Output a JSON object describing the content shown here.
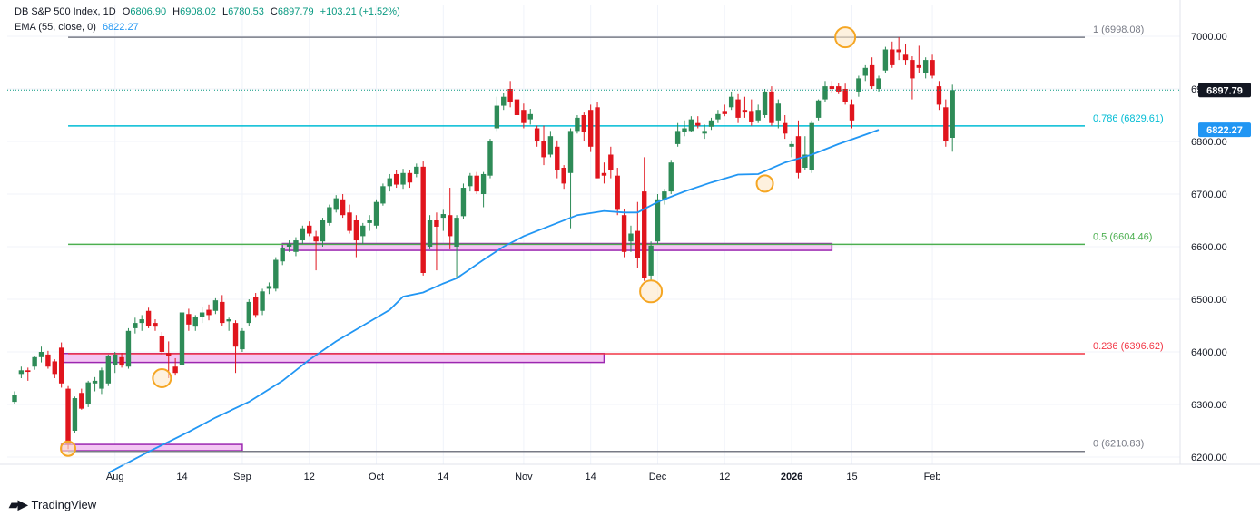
{
  "legend": {
    "symbol": "DB S&P 500 Index, 1D",
    "open_label": "O",
    "open": "6806.90",
    "high_label": "H",
    "high": "6908.02",
    "low_label": "L",
    "low": "6780.53",
    "close_label": "C",
    "close": "6897.79",
    "change": "+103.21 (+1.52%)",
    "ema_label": "EMA (55, close, 0)",
    "ema_value": "6822.27"
  },
  "branding": {
    "name": "TradingView"
  },
  "colors": {
    "up": "#26a69a",
    "up_body": "#2e8b57",
    "down": "#e0151d",
    "ema": "#2196f3",
    "fib0": "#787b86",
    "fib236": "#f23645",
    "fib5": "#4caf50",
    "fib786": "#00bcd4",
    "fib1": "#787b86",
    "zone_fill": "#f3c6f3",
    "zone_stroke": "#9c27b0",
    "circle_fill": "#fde7c8",
    "circle_stroke": "#f5a623",
    "price_badge": "#131722",
    "ema_badge": "#2196f3"
  },
  "chart_data": {
    "type": "candlestick",
    "title": "DB S&P 500 Index, 1D",
    "ylim": [
      6180,
      7050
    ],
    "y_ticks": [
      6200,
      6300,
      6400,
      6500,
      6600,
      6700,
      6800,
      6900,
      7000
    ],
    "y_tick_labels": [
      "6200.00",
      "6300.00",
      "6400.00",
      "6500.00",
      "6600.00",
      "6700.00",
      "6800.00",
      "6900.00",
      "7000.00"
    ],
    "x_ticks": [
      {
        "index": 15,
        "label": "Aug"
      },
      {
        "index": 25,
        "label": "14"
      },
      {
        "index": 34,
        "label": "Sep"
      },
      {
        "index": 44,
        "label": "12"
      },
      {
        "index": 54,
        "label": "Oct"
      },
      {
        "index": 64,
        "label": "14"
      },
      {
        "index": 76,
        "label": "Nov"
      },
      {
        "index": 86,
        "label": "14"
      },
      {
        "index": 96,
        "label": "Dec"
      },
      {
        "index": 106,
        "label": "12"
      },
      {
        "index": 116,
        "label": "2026"
      },
      {
        "index": 125,
        "label": "15"
      },
      {
        "index": 137,
        "label": "Feb"
      }
    ],
    "candles": [
      {
        "o": 6305,
        "h": 6325,
        "l": 6300,
        "c": 6318
      },
      {
        "o": 6358,
        "h": 6372,
        "l": 6350,
        "c": 6365
      },
      {
        "o": 6365,
        "h": 6370,
        "l": 6345,
        "c": 6362
      },
      {
        "o": 6372,
        "h": 6392,
        "l": 6366,
        "c": 6390
      },
      {
        "o": 6390,
        "h": 6410,
        "l": 6380,
        "c": 6400
      },
      {
        "o": 6395,
        "h": 6402,
        "l": 6368,
        "c": 6372
      },
      {
        "o": 6382,
        "h": 6386,
        "l": 6350,
        "c": 6358
      },
      {
        "o": 6408,
        "h": 6418,
        "l": 6332,
        "c": 6340
      },
      {
        "o": 6330,
        "h": 6335,
        "l": 6215,
        "c": 6225
      },
      {
        "o": 6250,
        "h": 6315,
        "l": 6245,
        "c": 6312
      },
      {
        "o": 6322,
        "h": 6330,
        "l": 6290,
        "c": 6292
      },
      {
        "o": 6300,
        "h": 6345,
        "l": 6295,
        "c": 6342
      },
      {
        "o": 6340,
        "h": 6352,
        "l": 6325,
        "c": 6345
      },
      {
        "o": 6330,
        "h": 6370,
        "l": 6320,
        "c": 6365
      },
      {
        "o": 6340,
        "h": 6395,
        "l": 6335,
        "c": 6392
      },
      {
        "o": 6375,
        "h": 6400,
        "l": 6360,
        "c": 6395
      },
      {
        "o": 6390,
        "h": 6398,
        "l": 6370,
        "c": 6374
      },
      {
        "o": 6372,
        "h": 6445,
        "l": 6368,
        "c": 6440
      },
      {
        "o": 6445,
        "h": 6465,
        "l": 6435,
        "c": 6455
      },
      {
        "o": 6455,
        "h": 6470,
        "l": 6440,
        "c": 6462
      },
      {
        "o": 6478,
        "h": 6484,
        "l": 6445,
        "c": 6450
      },
      {
        "o": 6455,
        "h": 6462,
        "l": 6440,
        "c": 6448
      },
      {
        "o": 6430,
        "h": 6438,
        "l": 6395,
        "c": 6400
      },
      {
        "o": 6398,
        "h": 6420,
        "l": 6350,
        "c": 6392
      },
      {
        "o": 6372,
        "h": 6388,
        "l": 6355,
        "c": 6360
      },
      {
        "o": 6375,
        "h": 6480,
        "l": 6370,
        "c": 6475
      },
      {
        "o": 6472,
        "h": 6482,
        "l": 6440,
        "c": 6452
      },
      {
        "o": 6448,
        "h": 6470,
        "l": 6440,
        "c": 6466
      },
      {
        "o": 6466,
        "h": 6485,
        "l": 6455,
        "c": 6475
      },
      {
        "o": 6480,
        "h": 6490,
        "l": 6460,
        "c": 6470
      },
      {
        "o": 6478,
        "h": 6502,
        "l": 6472,
        "c": 6498
      },
      {
        "o": 6495,
        "h": 6508,
        "l": 6450,
        "c": 6455
      },
      {
        "o": 6458,
        "h": 6465,
        "l": 6440,
        "c": 6462
      },
      {
        "o": 6455,
        "h": 6460,
        "l": 6360,
        "c": 6410
      },
      {
        "o": 6405,
        "h": 6445,
        "l": 6400,
        "c": 6440
      },
      {
        "o": 6455,
        "h": 6500,
        "l": 6450,
        "c": 6495
      },
      {
        "o": 6505,
        "h": 6512,
        "l": 6465,
        "c": 6470
      },
      {
        "o": 6478,
        "h": 6520,
        "l": 6470,
        "c": 6515
      },
      {
        "o": 6520,
        "h": 6532,
        "l": 6510,
        "c": 6525
      },
      {
        "o": 6520,
        "h": 6580,
        "l": 6515,
        "c": 6575
      },
      {
        "o": 6572,
        "h": 6600,
        "l": 6565,
        "c": 6598
      },
      {
        "o": 6600,
        "h": 6612,
        "l": 6590,
        "c": 6605
      },
      {
        "o": 6590,
        "h": 6618,
        "l": 6582,
        "c": 6612
      },
      {
        "o": 6612,
        "h": 6640,
        "l": 6605,
        "c": 6635
      },
      {
        "o": 6640,
        "h": 6648,
        "l": 6620,
        "c": 6625
      },
      {
        "o": 6620,
        "h": 6630,
        "l": 6555,
        "c": 6610
      },
      {
        "o": 6610,
        "h": 6655,
        "l": 6600,
        "c": 6650
      },
      {
        "o": 6645,
        "h": 6680,
        "l": 6640,
        "c": 6675
      },
      {
        "o": 6670,
        "h": 6698,
        "l": 6665,
        "c": 6692
      },
      {
        "o": 6690,
        "h": 6700,
        "l": 6655,
        "c": 6660
      },
      {
        "o": 6665,
        "h": 6680,
        "l": 6625,
        "c": 6630
      },
      {
        "o": 6650,
        "h": 6660,
        "l": 6580,
        "c": 6612
      },
      {
        "o": 6620,
        "h": 6645,
        "l": 6605,
        "c": 6640
      },
      {
        "o": 6645,
        "h": 6660,
        "l": 6630,
        "c": 6650
      },
      {
        "o": 6640,
        "h": 6690,
        "l": 6635,
        "c": 6685
      },
      {
        "o": 6682,
        "h": 6720,
        "l": 6678,
        "c": 6715
      },
      {
        "o": 6715,
        "h": 6738,
        "l": 6705,
        "c": 6730
      },
      {
        "o": 6738,
        "h": 6745,
        "l": 6712,
        "c": 6718
      },
      {
        "o": 6718,
        "h": 6748,
        "l": 6710,
        "c": 6740
      },
      {
        "o": 6740,
        "h": 6745,
        "l": 6712,
        "c": 6722
      },
      {
        "o": 6738,
        "h": 6758,
        "l": 6732,
        "c": 6752
      },
      {
        "o": 6752,
        "h": 6762,
        "l": 6545,
        "c": 6550
      },
      {
        "o": 6600,
        "h": 6660,
        "l": 6595,
        "c": 6650
      },
      {
        "o": 6650,
        "h": 6665,
        "l": 6555,
        "c": 6638
      },
      {
        "o": 6655,
        "h": 6670,
        "l": 6630,
        "c": 6662
      },
      {
        "o": 6660,
        "h": 6712,
        "l": 6595,
        "c": 6620
      },
      {
        "o": 6600,
        "h": 6660,
        "l": 6540,
        "c": 6655
      },
      {
        "o": 6658,
        "h": 6720,
        "l": 6652,
        "c": 6712
      },
      {
        "o": 6715,
        "h": 6740,
        "l": 6705,
        "c": 6735
      },
      {
        "o": 6735,
        "h": 6742,
        "l": 6700,
        "c": 6705
      },
      {
        "o": 6700,
        "h": 6742,
        "l": 6675,
        "c": 6738
      },
      {
        "o": 6735,
        "h": 6805,
        "l": 6730,
        "c": 6800
      },
      {
        "o": 6825,
        "h": 6885,
        "l": 6820,
        "c": 6868
      },
      {
        "o": 6868,
        "h": 6893,
        "l": 6860,
        "c": 6885
      },
      {
        "o": 6900,
        "h": 6915,
        "l": 6865,
        "c": 6875
      },
      {
        "o": 6880,
        "h": 6890,
        "l": 6815,
        "c": 6850
      },
      {
        "o": 6860,
        "h": 6872,
        "l": 6825,
        "c": 6835
      },
      {
        "o": 6842,
        "h": 6862,
        "l": 6832,
        "c": 6852
      },
      {
        "o": 6825,
        "h": 6830,
        "l": 6790,
        "c": 6800
      },
      {
        "o": 6800,
        "h": 6830,
        "l": 6755,
        "c": 6770
      },
      {
        "o": 6775,
        "h": 6820,
        "l": 6770,
        "c": 6810
      },
      {
        "o": 6790,
        "h": 6802,
        "l": 6730,
        "c": 6745
      },
      {
        "o": 6750,
        "h": 6755,
        "l": 6710,
        "c": 6720
      },
      {
        "o": 6740,
        "h": 6825,
        "l": 6635,
        "c": 6820
      },
      {
        "o": 6820,
        "h": 6850,
        "l": 6815,
        "c": 6845
      },
      {
        "o": 6850,
        "h": 6855,
        "l": 6800,
        "c": 6818
      },
      {
        "o": 6860,
        "h": 6870,
        "l": 6780,
        "c": 6790
      },
      {
        "o": 6865,
        "h": 6875,
        "l": 6730,
        "c": 6730
      },
      {
        "o": 6740,
        "h": 6760,
        "l": 6720,
        "c": 6735
      },
      {
        "o": 6775,
        "h": 6790,
        "l": 6730,
        "c": 6745
      },
      {
        "o": 6735,
        "h": 6750,
        "l": 6660,
        "c": 6670
      },
      {
        "o": 6660,
        "h": 6672,
        "l": 6580,
        "c": 6590
      },
      {
        "o": 6610,
        "h": 6640,
        "l": 6590,
        "c": 6625
      },
      {
        "o": 6630,
        "h": 6685,
        "l": 6560,
        "c": 6578
      },
      {
        "o": 6705,
        "h": 6770,
        "l": 6535,
        "c": 6540
      },
      {
        "o": 6545,
        "h": 6610,
        "l": 6535,
        "c": 6602
      },
      {
        "o": 6610,
        "h": 6700,
        "l": 6605,
        "c": 6690
      },
      {
        "o": 6690,
        "h": 6710,
        "l": 6680,
        "c": 6705
      },
      {
        "o": 6705,
        "h": 6765,
        "l": 6700,
        "c": 6760
      },
      {
        "o": 6795,
        "h": 6835,
        "l": 6790,
        "c": 6820
      },
      {
        "o": 6818,
        "h": 6840,
        "l": 6810,
        "c": 6825
      },
      {
        "o": 6820,
        "h": 6848,
        "l": 6818,
        "c": 6842
      },
      {
        "o": 6835,
        "h": 6848,
        "l": 6825,
        "c": 6830
      },
      {
        "o": 6815,
        "h": 6832,
        "l": 6805,
        "c": 6820
      },
      {
        "o": 6828,
        "h": 6845,
        "l": 6822,
        "c": 6840
      },
      {
        "o": 6842,
        "h": 6860,
        "l": 6835,
        "c": 6852
      },
      {
        "o": 6858,
        "h": 6870,
        "l": 6848,
        "c": 6852
      },
      {
        "o": 6865,
        "h": 6895,
        "l": 6860,
        "c": 6885
      },
      {
        "o": 6880,
        "h": 6890,
        "l": 6835,
        "c": 6845
      },
      {
        "o": 6860,
        "h": 6885,
        "l": 6845,
        "c": 6855
      },
      {
        "o": 6858,
        "h": 6880,
        "l": 6830,
        "c": 6838
      },
      {
        "o": 6840,
        "h": 6870,
        "l": 6835,
        "c": 6860
      },
      {
        "o": 6850,
        "h": 6900,
        "l": 6845,
        "c": 6895
      },
      {
        "o": 6895,
        "h": 6905,
        "l": 6830,
        "c": 6835
      },
      {
        "o": 6840,
        "h": 6880,
        "l": 6825,
        "c": 6872
      },
      {
        "o": 6835,
        "h": 6850,
        "l": 6805,
        "c": 6815
      },
      {
        "o": 6790,
        "h": 6800,
        "l": 6770,
        "c": 6795
      },
      {
        "o": 6810,
        "h": 6840,
        "l": 6730,
        "c": 6740
      },
      {
        "o": 6750,
        "h": 6810,
        "l": 6745,
        "c": 6775
      },
      {
        "o": 6745,
        "h": 6840,
        "l": 6740,
        "c": 6835
      },
      {
        "o": 6845,
        "h": 6880,
        "l": 6840,
        "c": 6878
      },
      {
        "o": 6880,
        "h": 6915,
        "l": 6875,
        "c": 6905
      },
      {
        "o": 6905,
        "h": 6915,
        "l": 6892,
        "c": 6900
      },
      {
        "o": 6905,
        "h": 6912,
        "l": 6890,
        "c": 6895
      },
      {
        "o": 6900,
        "h": 6910,
        "l": 6870,
        "c": 6875
      },
      {
        "o": 6870,
        "h": 6880,
        "l": 6825,
        "c": 6840
      },
      {
        "o": 6895,
        "h": 6925,
        "l": 6885,
        "c": 6920
      },
      {
        "o": 6925,
        "h": 6945,
        "l": 6915,
        "c": 6940
      },
      {
        "o": 6945,
        "h": 6960,
        "l": 6900,
        "c": 6905
      },
      {
        "o": 6900,
        "h": 6925,
        "l": 6895,
        "c": 6920
      },
      {
        "o": 6935,
        "h": 6980,
        "l": 6930,
        "c": 6975
      },
      {
        "o": 6975,
        "h": 6990,
        "l": 6940,
        "c": 6945
      },
      {
        "o": 6975,
        "h": 6998,
        "l": 6955,
        "c": 6970
      },
      {
        "o": 6965,
        "h": 6985,
        "l": 6945,
        "c": 6955
      },
      {
        "o": 6955,
        "h": 6962,
        "l": 6880,
        "c": 6920
      },
      {
        "o": 6945,
        "h": 6982,
        "l": 6930,
        "c": 6940
      },
      {
        "o": 6930,
        "h": 6960,
        "l": 6920,
        "c": 6955
      },
      {
        "o": 6955,
        "h": 6965,
        "l": 6920,
        "c": 6925
      },
      {
        "o": 6905,
        "h": 6915,
        "l": 6860,
        "c": 6870
      },
      {
        "o": 6865,
        "h": 6880,
        "l": 6790,
        "c": 6800
      },
      {
        "o": 6806.9,
        "h": 6908.02,
        "l": 6780.53,
        "c": 6897.79
      }
    ],
    "ema": {
      "name": "EMA (55, close, 0)",
      "points": [
        [
          14,
          6170
        ],
        [
          20,
          6210
        ],
        [
          26,
          6248
        ],
        [
          30,
          6275
        ],
        [
          35,
          6305
        ],
        [
          40,
          6345
        ],
        [
          44,
          6385
        ],
        [
          48,
          6420
        ],
        [
          52,
          6450
        ],
        [
          56,
          6480
        ],
        [
          58,
          6505
        ],
        [
          61,
          6513
        ],
        [
          64,
          6530
        ],
        [
          66,
          6540
        ],
        [
          70,
          6575
        ],
        [
          73,
          6600
        ],
        [
          76,
          6620
        ],
        [
          80,
          6640
        ],
        [
          84,
          6660
        ],
        [
          88,
          6668
        ],
        [
          91,
          6665
        ],
        [
          93,
          6665
        ],
        [
          96,
          6685
        ],
        [
          100,
          6705
        ],
        [
          104,
          6722
        ],
        [
          108,
          6737
        ],
        [
          111,
          6738
        ],
        [
          115,
          6760
        ],
        [
          119,
          6775
        ],
        [
          123,
          6795
        ],
        [
          127,
          6813
        ],
        [
          129,
          6822.27
        ]
      ]
    },
    "fib_levels": [
      {
        "ratio": "0",
        "value": 6210.83,
        "label": "0 (6210.83)",
        "color": "#787b86"
      },
      {
        "ratio": "0.236",
        "value": 6396.62,
        "label": "0.236 (6396.62)",
        "color": "#f23645"
      },
      {
        "ratio": "0.5",
        "value": 6604.46,
        "label": "0.5 (6604.46)",
        "color": "#4caf50"
      },
      {
        "ratio": "0.786",
        "value": 6829.61,
        "label": "0.786 (6829.61)",
        "color": "#00bcd4"
      },
      {
        "ratio": "1",
        "value": 6998.08,
        "label": "1 (6998.08)",
        "color": "#787b86"
      }
    ],
    "fib_start_index": 8,
    "zones": [
      {
        "x0": 7,
        "x1": 34,
        "y0": 6212,
        "y1": 6224
      },
      {
        "x0": 7,
        "x1": 88,
        "y0": 6380,
        "y1": 6397
      },
      {
        "x0": 40,
        "x1": 122,
        "y0": 6593,
        "y1": 6606
      }
    ],
    "circles": [
      {
        "index": 8,
        "value": 6216,
        "r": 8
      },
      {
        "index": 22,
        "value": 6350,
        "r": 10
      },
      {
        "index": 95,
        "value": 6515,
        "r": 12
      },
      {
        "index": 112,
        "value": 6720,
        "r": 9
      },
      {
        "index": 124,
        "value": 6998,
        "r": 11
      }
    ],
    "last_price": 6897.79,
    "last_price_label": "6897.79",
    "ema_last_label": "6822.27"
  }
}
